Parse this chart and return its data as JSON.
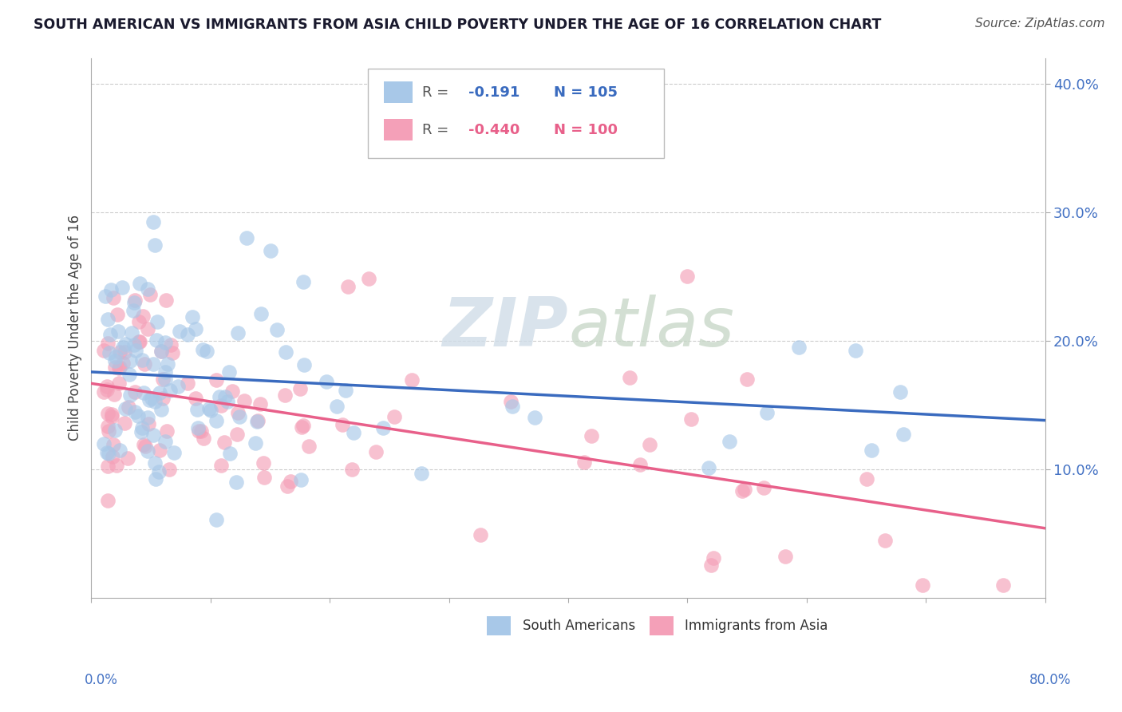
{
  "title": "SOUTH AMERICAN VS IMMIGRANTS FROM ASIA CHILD POVERTY UNDER THE AGE OF 16 CORRELATION CHART",
  "source": "Source: ZipAtlas.com",
  "ylabel": "Child Poverty Under the Age of 16",
  "xlim": [
    0.0,
    0.8
  ],
  "ylim": [
    0.0,
    0.42
  ],
  "r_south": -0.191,
  "n_south": 105,
  "r_asia": -0.44,
  "n_asia": 100,
  "color_south": "#a8c8e8",
  "color_asia": "#f4a0b8",
  "line_color_south": "#3a6bbf",
  "line_color_asia": "#e8608a",
  "tick_color": "#4472c4",
  "watermark_color": "#d0dde8",
  "background_color": "#ffffff",
  "grid_color": "#cccccc",
  "legend_r_color": "#555555",
  "legend_box_edge": "#bbbbbb"
}
